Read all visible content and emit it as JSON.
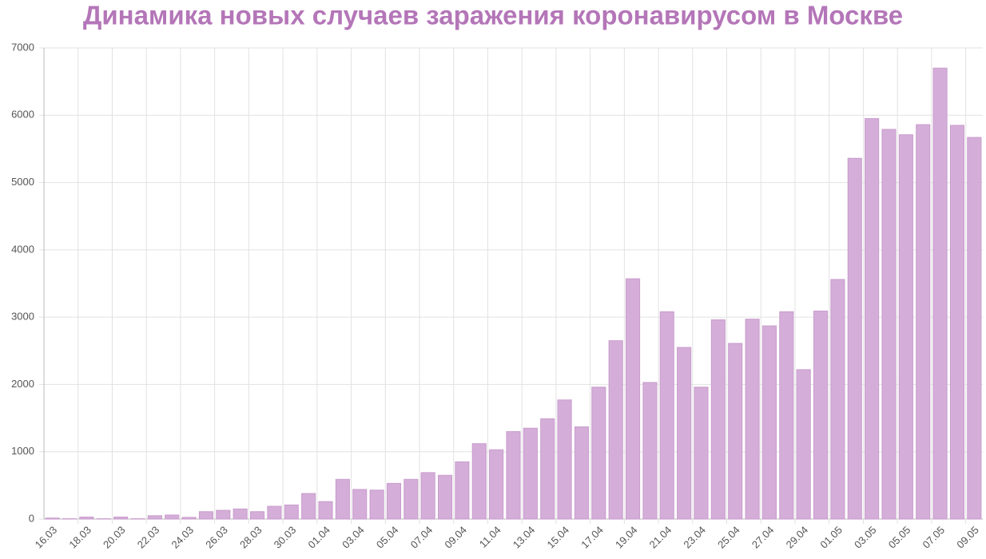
{
  "chart_data": {
    "type": "bar",
    "title": "Динамика новых случаев заражения коронавирусом в Москве",
    "categories": [
      "16.03",
      null,
      "18.03",
      null,
      "20.03",
      null,
      "22.03",
      null,
      "24.03",
      null,
      "26.03",
      null,
      "28.03",
      null,
      "30.03",
      null,
      "01.04",
      null,
      "03.04",
      null,
      "05.04",
      null,
      "07.04",
      null,
      "09.04",
      null,
      "11.04",
      null,
      "13.04",
      null,
      "15.04",
      null,
      "17.04",
      null,
      "19.04",
      null,
      "21.04",
      null,
      "23.04",
      null,
      "25.04",
      null,
      "27.04",
      null,
      "29.04",
      null,
      "01.05",
      null,
      "03.05",
      null,
      "05.05",
      null,
      "07.05",
      null,
      "09.05"
    ],
    "values": [
      15,
      5,
      30,
      5,
      30,
      5,
      50,
      60,
      25,
      110,
      130,
      150,
      110,
      190,
      210,
      380,
      260,
      590,
      440,
      430,
      530,
      590,
      690,
      650,
      850,
      1120,
      1030,
      1300,
      1350,
      1490,
      1770,
      1370,
      1960,
      2650,
      3570,
      2030,
      3080,
      2550,
      1960,
      2960,
      2610,
      2970,
      2870,
      3080,
      2220,
      3090,
      3560,
      5360,
      5950,
      5790,
      5710,
      5860,
      6700,
      5850,
      5670
    ],
    "color": "#d4aed8",
    "ylim": [
      0,
      7000
    ],
    "yticks": [
      0,
      1000,
      2000,
      3000,
      4000,
      5000,
      6000,
      7000
    ],
    "grid": true
  }
}
